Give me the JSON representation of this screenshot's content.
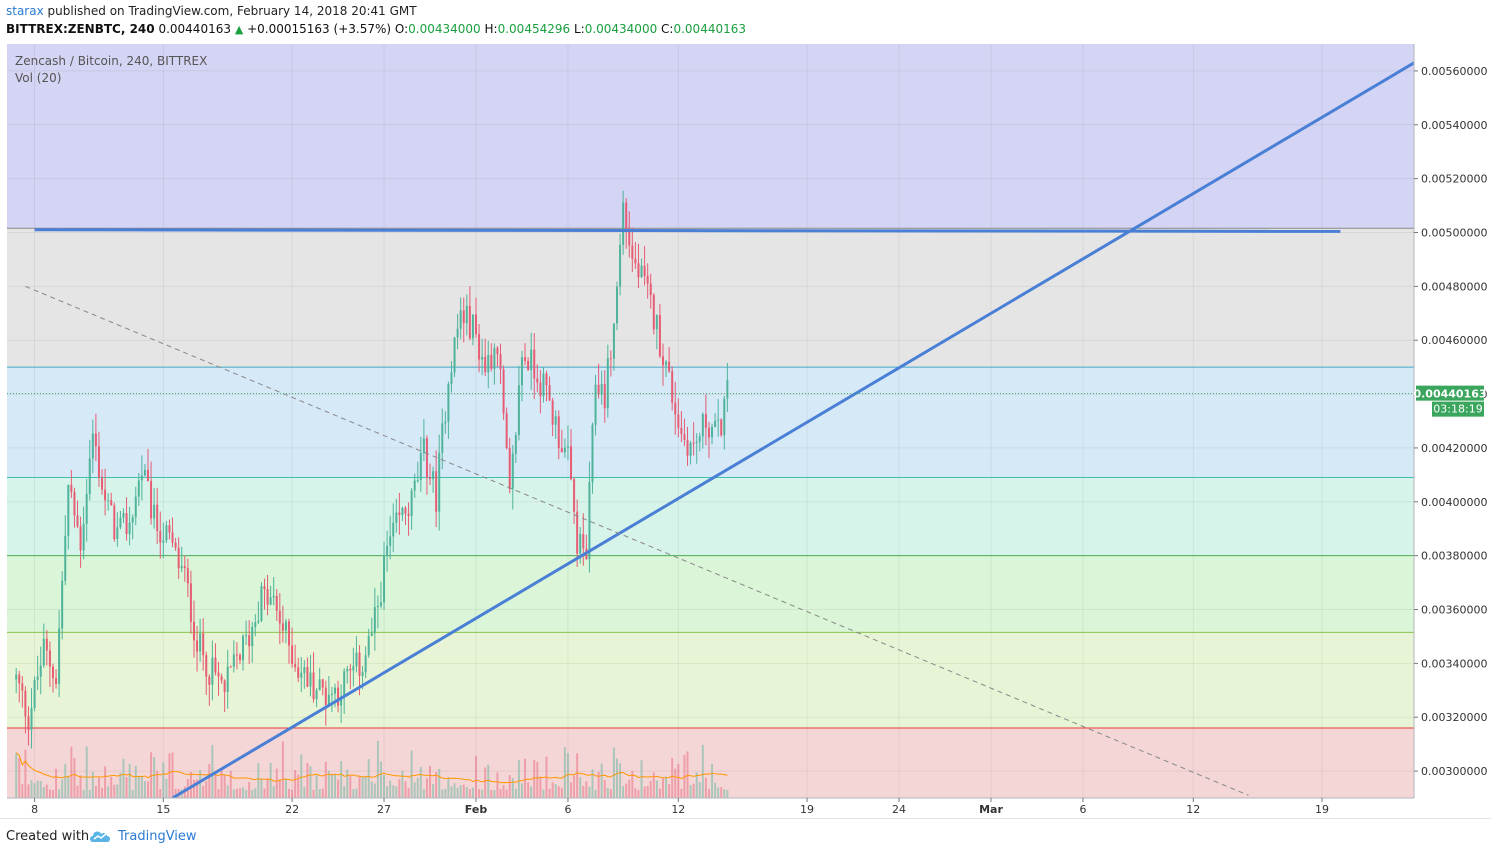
{
  "header": {
    "user": "starax",
    "published_text": "published on TradingView.com, February 14, 2018 20:41 GMT",
    "symbol": "BITTREX:ZENBTC, 240",
    "last": "0.00440163",
    "change": "+0.00015163 (+3.57%)",
    "o_label": "O:",
    "o_value": "0.00434000",
    "h_label": "H:",
    "h_value": "0.00454296",
    "l_label": "L:",
    "l_value": "0.00434000",
    "c_label": "C:",
    "c_value": "0.00440163"
  },
  "legend": {
    "title": "Zencash / Bitcoin, 240, BITTREX",
    "volume": "Vol (20)"
  },
  "price_tag": {
    "price": "0.00440163",
    "countdown": "03:18:19"
  },
  "footer": {
    "created_with": "Created with",
    "brand": "TradingView"
  },
  "colors": {
    "up": "#4fb39b",
    "down": "#e75b73",
    "trendline": "#4a7fd6",
    "band_violet": "#d4d4f4",
    "band_gray": "#e5e5e5",
    "band_lightblue": "#d6e9f6",
    "band_mint": "#d7f4ea",
    "band_lightgreen": "#daf5d8",
    "band_yellowgreen": "#e7f5d6",
    "band_pink": "#f5d6d6"
  },
  "chart_data": {
    "type": "candlestick",
    "title": "Zencash / Bitcoin, 240, BITTREX",
    "ylim": [
      0.0029,
      0.0057
    ],
    "y_ticks": [
      "0.00300000",
      "0.00320000",
      "0.00340000",
      "0.00360000",
      "0.00380000",
      "0.00400000",
      "0.00420000",
      "0.00440000",
      "0.00460000",
      "0.00480000",
      "0.00500000",
      "0.00520000",
      "0.00540000",
      "0.00560000"
    ],
    "x_ticks": [
      "8",
      "15",
      "22",
      "27",
      "Feb",
      "6",
      "12",
      "19",
      "24",
      "Mar",
      "6",
      "12",
      "19"
    ],
    "x_tick_dates": [
      "2018-01-08",
      "2018-01-15",
      "2018-01-22",
      "2018-01-27",
      "2018-02-01",
      "2018-02-06",
      "2018-02-12",
      "2018-02-19",
      "2018-02-24",
      "2018-03-01",
      "2018-03-06",
      "2018-03-12",
      "2018-03-19"
    ],
    "fib_levels": [
      0.005016,
      0.0045,
      0.00409,
      0.0038,
      0.003515,
      0.00316
    ],
    "horizontal_resistance": 0.005,
    "trendlines": [
      {
        "style": "solid",
        "from": [
          "2018-01-15T12:00",
          0.0029
        ],
        "to": [
          "2018-03-24",
          0.00563
        ]
      },
      {
        "style": "solid",
        "from": [
          "2018-01-08",
          0.00501
        ],
        "to": [
          "2018-03-20",
          0.005004
        ]
      },
      {
        "style": "dashed",
        "from": [
          "2018-01-07T12:00",
          0.0048
        ],
        "to": [
          "2018-03-15",
          0.00291
        ]
      }
    ],
    "last_price": 0.00440163,
    "anchors": [
      [
        "2018-01-07T00:00",
        0.00334
      ],
      [
        "2018-01-07T16:00",
        0.0032
      ],
      [
        "2018-01-08T12:00",
        0.00345
      ],
      [
        "2018-01-09T04:00",
        0.00335
      ],
      [
        "2018-01-09T20:00",
        0.00405
      ],
      [
        "2018-01-10T12:00",
        0.00385
      ],
      [
        "2018-01-11T04:00",
        0.00425
      ],
      [
        "2018-01-11T20:00",
        0.004
      ],
      [
        "2018-01-12T12:00",
        0.00388
      ],
      [
        "2018-01-13T04:00",
        0.00392
      ],
      [
        "2018-01-13T20:00",
        0.00412
      ],
      [
        "2018-01-14T12:00",
        0.00393
      ],
      [
        "2018-01-15T08:00",
        0.00385
      ],
      [
        "2018-01-16T04:00",
        0.00372
      ],
      [
        "2018-01-16T20:00",
        0.00348
      ],
      [
        "2018-01-17T12:00",
        0.00338
      ],
      [
        "2018-01-18T08:00",
        0.0033
      ],
      [
        "2018-01-19T00:00",
        0.00342
      ],
      [
        "2018-01-19T16:00",
        0.0035
      ],
      [
        "2018-01-20T08:00",
        0.00365
      ],
      [
        "2018-01-21T00:00",
        0.00362
      ],
      [
        "2018-01-21T16:00",
        0.0035
      ],
      [
        "2018-01-22T08:00",
        0.00338
      ],
      [
        "2018-01-23T00:00",
        0.00333
      ],
      [
        "2018-01-23T20:00",
        0.00329
      ],
      [
        "2018-01-24T12:00",
        0.0033
      ],
      [
        "2018-01-25T04:00",
        0.00336
      ],
      [
        "2018-01-25T20:00",
        0.0034
      ],
      [
        "2018-01-26T12:00",
        0.00355
      ],
      [
        "2018-01-27T04:00",
        0.00382
      ],
      [
        "2018-01-27T20:00",
        0.00393
      ],
      [
        "2018-01-28T12:00",
        0.004
      ],
      [
        "2018-01-29T04:00",
        0.00418
      ],
      [
        "2018-01-29T20:00",
        0.00402
      ],
      [
        "2018-01-30T12:00",
        0.00447
      ],
      [
        "2018-01-31T04:00",
        0.0047
      ],
      [
        "2018-01-31T20:00",
        0.00465
      ],
      [
        "2018-02-01T12:00",
        0.0045
      ],
      [
        "2018-02-02T04:00",
        0.0046
      ],
      [
        "2018-02-02T20:00",
        0.004
      ],
      [
        "2018-02-03T12:00",
        0.00455
      ],
      [
        "2018-02-04T04:00",
        0.0045
      ],
      [
        "2018-02-04T20:00",
        0.0044
      ],
      [
        "2018-02-05T12:00",
        0.00425
      ],
      [
        "2018-02-06T00:00",
        0.00415
      ],
      [
        "2018-02-06T12:00",
        0.00385
      ],
      [
        "2018-02-07T00:00",
        0.0038
      ],
      [
        "2018-02-07T12:00",
        0.00445
      ],
      [
        "2018-02-08T00:00",
        0.0044
      ],
      [
        "2018-02-08T12:00",
        0.00465
      ],
      [
        "2018-02-09T00:00",
        0.0051
      ],
      [
        "2018-02-09T12:00",
        0.0049
      ],
      [
        "2018-02-10T04:00",
        0.0048
      ],
      [
        "2018-02-10T20:00",
        0.00465
      ],
      [
        "2018-02-11T12:00",
        0.00445
      ],
      [
        "2018-02-12T04:00",
        0.00425
      ],
      [
        "2018-02-12T20:00",
        0.0042
      ],
      [
        "2018-02-13T12:00",
        0.0043
      ],
      [
        "2018-02-14T04:00",
        0.00425
      ],
      [
        "2018-02-14T16:00",
        0.00440163
      ]
    ]
  }
}
